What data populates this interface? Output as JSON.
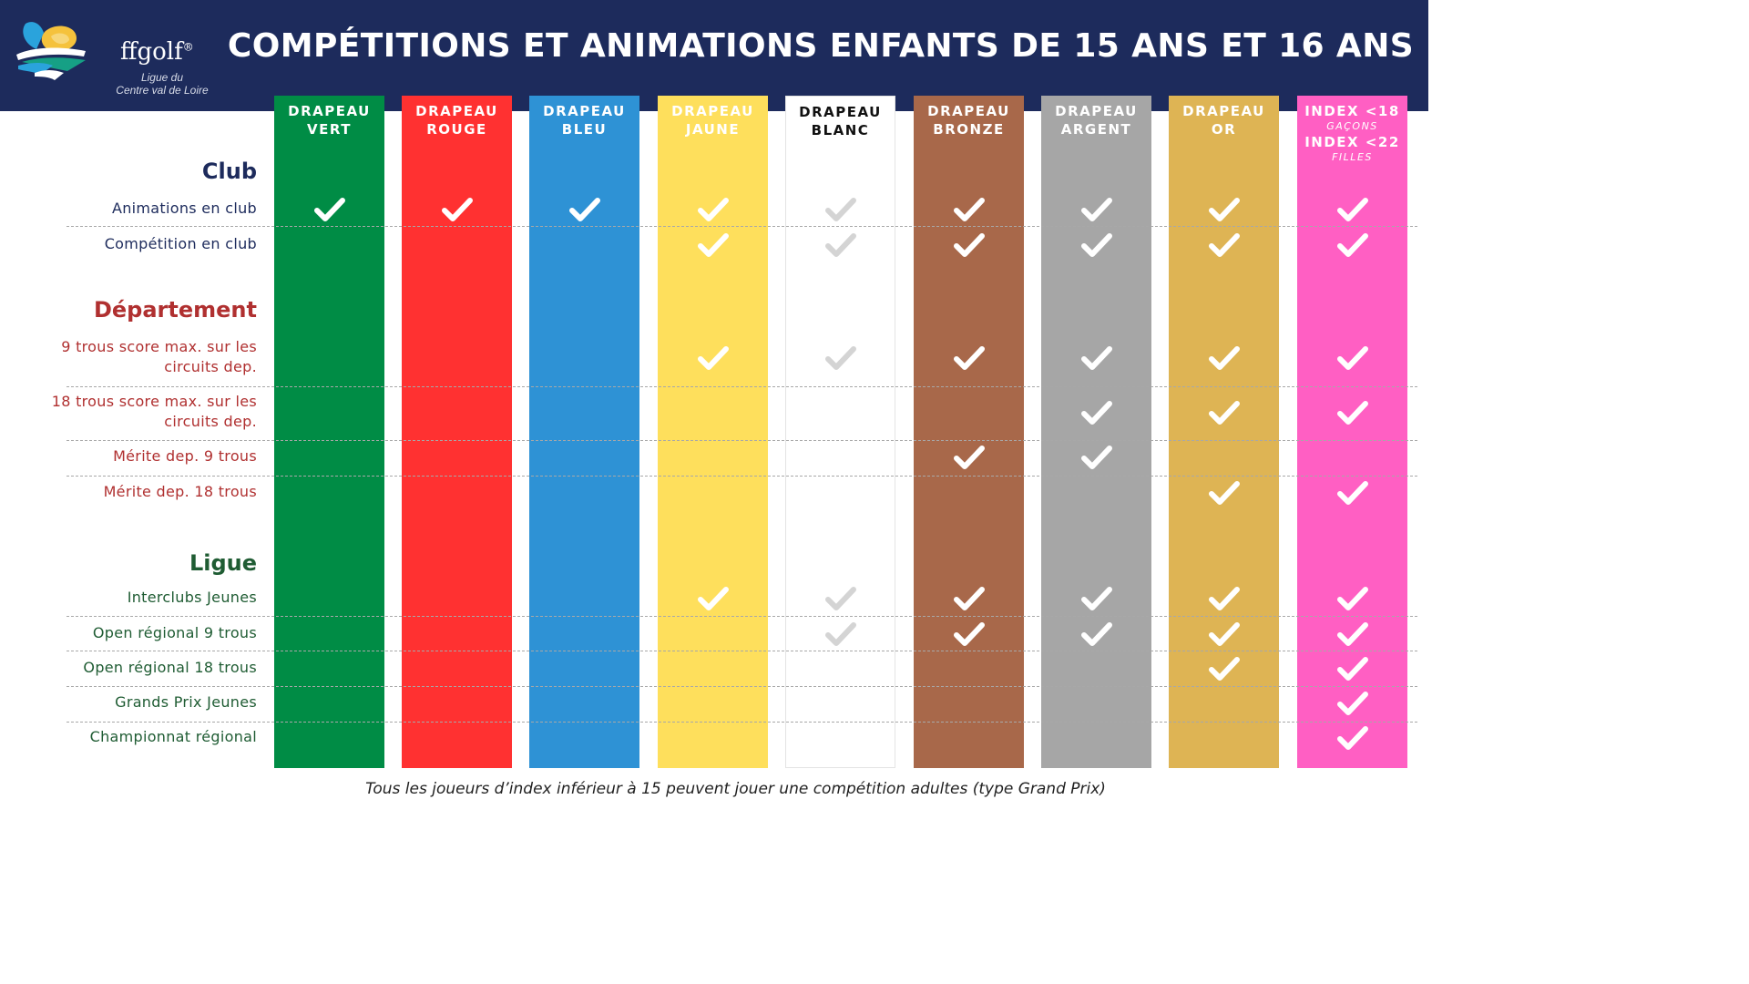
{
  "header": {
    "logo_word": "ffgolf",
    "logo_registered": "®",
    "logo_sub_1": "Ligue du",
    "logo_sub_2": "Centre val de Loire",
    "title": "COMPÉTITIONS ET ANIMATIONS ENFANTS DE 15 ANS ET 16 ANS"
  },
  "columns": [
    {
      "line1": "DRAPEAU",
      "line2": "VERT",
      "color": "#008c45",
      "text_color": "#ffffff",
      "check_color": "#ffffff"
    },
    {
      "line1": "DRAPEAU",
      "line2": "ROUGE",
      "color": "#ff3131",
      "text_color": "#ffffff",
      "check_color": "#ffffff"
    },
    {
      "line1": "DRAPEAU",
      "line2": "BLEU",
      "color": "#2e92d5",
      "text_color": "#ffffff",
      "check_color": "#ffffff"
    },
    {
      "line1": "DRAPEAU",
      "line2": "JAUNE",
      "color": "#fedf5c",
      "text_color": "#ffffff",
      "check_color": "#ffffff"
    },
    {
      "line1": "DRAPEAU",
      "line2": "BLANC",
      "color": "#ffffff",
      "text_color": "#111111",
      "check_color": "#d4d4d4"
    },
    {
      "line1": "DRAPEAU",
      "line2": "BRONZE",
      "color": "#a8684a",
      "text_color": "#ffffff",
      "check_color": "#ffffff"
    },
    {
      "line1": "DRAPEAU",
      "line2": "ARGENT",
      "color": "#a6a6a6",
      "text_color": "#ffffff",
      "check_color": "#ffffff"
    },
    {
      "line1": "DRAPEAU",
      "line2": "OR",
      "color": "#deb454",
      "text_color": "#ffffff",
      "check_color": "#ffffff"
    },
    {
      "line1": "INDEX <18",
      "small1": "GAÇONS",
      "line2": "INDEX <22",
      "small2": "FILLES",
      "color": "#ff5fc3",
      "text_color": "#ffffff",
      "check_color": "#ffffff"
    }
  ],
  "sections": [
    {
      "title": "Club",
      "color": "#1d2b5c",
      "rows": [
        {
          "label": "Animations en club",
          "checks": [
            true,
            true,
            true,
            true,
            true,
            true,
            true,
            true,
            true
          ]
        },
        {
          "label": "Compétition en club",
          "checks": [
            false,
            false,
            false,
            true,
            true,
            true,
            true,
            true,
            true
          ]
        }
      ]
    },
    {
      "title": "Département",
      "color": "#b03030",
      "rows": [
        {
          "label": "9 trous score max. sur les circuits dep.",
          "checks": [
            false,
            false,
            false,
            true,
            true,
            true,
            true,
            true,
            true
          ]
        },
        {
          "label": "18 trous score max. sur les circuits dep.",
          "checks": [
            false,
            false,
            false,
            false,
            false,
            false,
            true,
            true,
            true
          ]
        },
        {
          "label": "Mérite dep. 9 trous",
          "checks": [
            false,
            false,
            false,
            false,
            false,
            true,
            true,
            false,
            false
          ]
        },
        {
          "label": "Mérite dep. 18 trous",
          "checks": [
            false,
            false,
            false,
            false,
            false,
            false,
            false,
            true,
            true
          ]
        }
      ]
    },
    {
      "title": "Ligue",
      "color": "#1f5c33",
      "rows": [
        {
          "label": "Interclubs Jeunes",
          "checks": [
            false,
            false,
            false,
            true,
            true,
            true,
            true,
            true,
            true
          ]
        },
        {
          "label": "Open régional 9 trous",
          "checks": [
            false,
            false,
            false,
            false,
            true,
            true,
            true,
            true,
            true
          ]
        },
        {
          "label": "Open régional 18 trous",
          "checks": [
            false,
            false,
            false,
            false,
            false,
            false,
            false,
            true,
            true
          ]
        },
        {
          "label": "Grands Prix Jeunes",
          "checks": [
            false,
            false,
            false,
            false,
            false,
            false,
            false,
            false,
            true
          ]
        },
        {
          "label": "Championnat régional",
          "checks": [
            false,
            false,
            false,
            false,
            false,
            false,
            false,
            false,
            true
          ]
        }
      ]
    }
  ],
  "footer": "Tous les joueurs d’index inférieur à 15 peuvent jouer une compétition adultes (type Grand Prix)"
}
